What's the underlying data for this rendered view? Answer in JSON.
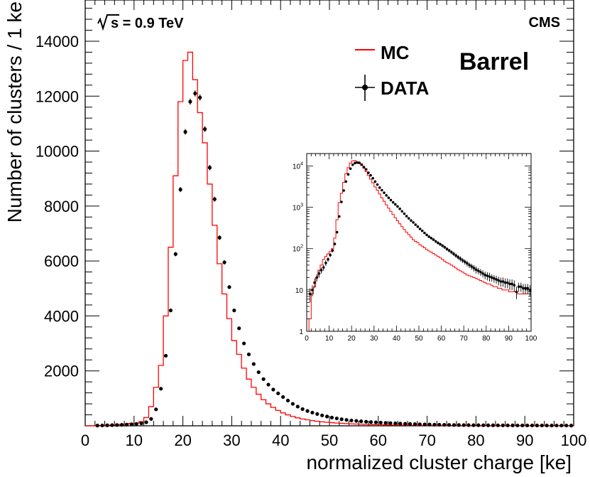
{
  "chart_data": [
    {
      "type": "histogram",
      "panel": "main",
      "experiment_label": "CMS",
      "energy_label": "s = 0.9 TeV",
      "region_label": "Barrel",
      "xlabel": "normalized cluster charge [ke]",
      "ylabel": "Number of clusters / 1 ke",
      "xlim": [
        0,
        100
      ],
      "ylim": [
        0,
        15500
      ],
      "x_ticks": [
        "0",
        "10",
        "20",
        "30",
        "40",
        "50",
        "60",
        "70",
        "80",
        "90",
        "100"
      ],
      "y_ticks": [
        "2000",
        "4000",
        "6000",
        "8000",
        "10000",
        "12000",
        "14000"
      ],
      "legend_position": "top-right",
      "series": [
        {
          "name": "MC",
          "style": "step",
          "color": "#ff0000",
          "bin_lower_edges": [
            0,
            1,
            2,
            3,
            4,
            5,
            6,
            7,
            8,
            9,
            10,
            11,
            12,
            13,
            14,
            15,
            16,
            17,
            18,
            19,
            20,
            21,
            22,
            23,
            24,
            25,
            26,
            27,
            28,
            29,
            30,
            31,
            32,
            33,
            34,
            35,
            36,
            37,
            38,
            39,
            40,
            41,
            42,
            43,
            44,
            45,
            46,
            47,
            48,
            49,
            50,
            51,
            52,
            53,
            54,
            55,
            56,
            57,
            58,
            59,
            60,
            61,
            62,
            63,
            64,
            65,
            66,
            67,
            68,
            69,
            70,
            71,
            72,
            73,
            74,
            75,
            76,
            77,
            78,
            79,
            80,
            81,
            82,
            83,
            84,
            85,
            86,
            87,
            88,
            89,
            90,
            91,
            92,
            93,
            94,
            95,
            96,
            97,
            98,
            99
          ],
          "values": [
            0,
            4,
            8,
            12,
            20,
            30,
            40,
            55,
            70,
            90,
            100,
            150,
            300,
            700,
            1400,
            2200,
            4000,
            6500,
            9100,
            11800,
            13300,
            13600,
            12600,
            11400,
            10300,
            8800,
            7300,
            5900,
            4800,
            3900,
            3100,
            2600,
            2100,
            1700,
            1400,
            1150,
            950,
            800,
            670,
            560,
            470,
            400,
            340,
            290,
            250,
            220,
            190,
            165,
            145,
            130,
            115,
            100,
            90,
            80,
            72,
            65,
            58,
            52,
            47,
            42,
            38,
            34,
            30,
            27,
            25,
            22,
            20,
            18,
            17,
            15,
            14,
            13,
            12,
            11,
            10,
            9,
            9,
            8,
            8,
            7,
            7,
            6,
            6,
            5,
            5,
            5,
            4,
            4,
            4,
            4,
            3,
            3,
            3,
            3,
            3,
            2,
            2,
            2,
            2,
            2
          ]
        },
        {
          "name": "DATA",
          "style": "points-with-errors",
          "color": "#000000",
          "x": [
            2.5,
            3.5,
            4.5,
            5.5,
            6.5,
            7.5,
            8.5,
            9.5,
            10.5,
            11.5,
            12.5,
            13.5,
            14.5,
            15.5,
            16.5,
            17.5,
            18.5,
            19.5,
            20.5,
            21.5,
            22.5,
            23.5,
            24.5,
            25.5,
            26.5,
            27.5,
            28.5,
            29.5,
            30.5,
            31.5,
            32.5,
            33.5,
            34.5,
            35.5,
            36.5,
            37.5,
            38.5,
            39.5,
            40.5,
            41.5,
            42.5,
            43.5,
            44.5,
            45.5,
            46.5,
            47.5,
            48.5,
            49.5,
            50.5,
            51.5,
            52.5,
            53.5,
            54.5,
            55.5,
            56.5,
            57.5,
            58.5,
            59.5,
            60.5,
            61.5,
            62.5,
            63.5,
            64.5,
            65.5,
            66.5,
            67.5,
            68.5,
            69.5,
            70.5,
            71.5,
            72.5,
            73.5,
            74.5,
            75.5,
            76.5,
            77.5,
            78.5,
            79.5,
            80.5,
            81.5,
            82.5,
            83.5,
            84.5,
            85.5,
            86.5,
            87.5,
            88.5,
            89.5,
            90.5,
            91.5,
            92.5,
            93.5,
            94.5,
            95.5,
            96.5,
            97.5,
            98.5,
            99.5
          ],
          "values": [
            10,
            15,
            20,
            25,
            30,
            35,
            45,
            55,
            70,
            90,
            130,
            250,
            600,
            1350,
            2550,
            4200,
            6250,
            8600,
            10700,
            11800,
            12100,
            11950,
            10800,
            9400,
            8250,
            6850,
            5950,
            5050,
            4200,
            3550,
            3000,
            2600,
            2250,
            1950,
            1700,
            1500,
            1320,
            1180,
            1050,
            920,
            800,
            700,
            610,
            540,
            480,
            430,
            380,
            340,
            300,
            270,
            240,
            215,
            195,
            180,
            165,
            150,
            138,
            128,
            118,
            108,
            98,
            90,
            82,
            75,
            68,
            62,
            57,
            52,
            48,
            44,
            40,
            37,
            34,
            31,
            29,
            27,
            25,
            23,
            22,
            21,
            20,
            19,
            18,
            17,
            16,
            16,
            15,
            15,
            14,
            14,
            13,
            13,
            12,
            12,
            11,
            11,
            11,
            10
          ],
          "errors": [
            3,
            4,
            4,
            5,
            5,
            6,
            7,
            7,
            8,
            9,
            11,
            16,
            25,
            37,
            50,
            65,
            79,
            93,
            103,
            109,
            110,
            109,
            104,
            97,
            91,
            83,
            77,
            71,
            65,
            60,
            55,
            51,
            47,
            44,
            41,
            39,
            36,
            34,
            32,
            30,
            28,
            26,
            25,
            23,
            22,
            21,
            19,
            18,
            17,
            16,
            15,
            15,
            14,
            13,
            13,
            12,
            12,
            11,
            11,
            10,
            10,
            9,
            9,
            9,
            8,
            8,
            8,
            7,
            7,
            7,
            6,
            6,
            6,
            6,
            5,
            5,
            5,
            5,
            5,
            5,
            4,
            4,
            4,
            4,
            4,
            4,
            4,
            4,
            4,
            4,
            4,
            4,
            3,
            3,
            3,
            3,
            3,
            3
          ]
        }
      ]
    },
    {
      "type": "histogram",
      "panel": "inset",
      "yscale": "log",
      "xlim": [
        0,
        100
      ],
      "ylim": [
        1,
        20000
      ],
      "x_ticks": [
        "0",
        "10",
        "20",
        "30",
        "40",
        "50",
        "60",
        "70",
        "80",
        "90",
        "100"
      ],
      "y_ticks": [
        {
          "base": "1",
          "exp": ""
        },
        {
          "base": "10",
          "exp": ""
        },
        {
          "base": "10",
          "exp": "2"
        },
        {
          "base": "10",
          "exp": "3"
        },
        {
          "base": "10",
          "exp": "4"
        }
      ],
      "series": [
        {
          "name": "MC",
          "style": "step",
          "color": "#ff0000",
          "bin_lower_edges": [
            0,
            1,
            2,
            3,
            4,
            5,
            6,
            7,
            8,
            9,
            10,
            11,
            12,
            13,
            14,
            15,
            16,
            17,
            18,
            19,
            20,
            21,
            22,
            23,
            24,
            25,
            26,
            27,
            28,
            29,
            30,
            31,
            32,
            33,
            34,
            35,
            36,
            37,
            38,
            39,
            40,
            41,
            42,
            43,
            44,
            45,
            46,
            47,
            48,
            49,
            50,
            51,
            52,
            53,
            54,
            55,
            56,
            57,
            58,
            59,
            60,
            61,
            62,
            63,
            64,
            65,
            66,
            67,
            68,
            69,
            70,
            71,
            72,
            73,
            74,
            75,
            76,
            77,
            78,
            79,
            80,
            81,
            82,
            83,
            84,
            85,
            86,
            87,
            88,
            89,
            90,
            91,
            92,
            93,
            94,
            95,
            96,
            97,
            98,
            99
          ],
          "values": [
            1,
            2,
            8,
            12,
            20,
            30,
            40,
            55,
            65,
            75,
            85,
            100,
            180,
            500,
            1300,
            2200,
            4000,
            6500,
            9100,
            11800,
            13300,
            13600,
            12600,
            11400,
            10300,
            8800,
            7300,
            5900,
            4800,
            3900,
            3100,
            2600,
            2100,
            1700,
            1400,
            1150,
            950,
            800,
            670,
            560,
            470,
            400,
            340,
            290,
            250,
            220,
            190,
            165,
            150,
            140,
            125,
            115,
            105,
            95,
            88,
            82,
            76,
            70,
            65,
            60,
            55,
            50,
            46,
            43,
            40,
            37,
            34,
            31,
            29,
            27,
            25,
            23,
            22,
            21,
            20,
            19,
            18,
            17,
            16,
            15,
            14,
            14,
            13,
            12,
            12,
            11,
            11,
            10,
            10,
            10,
            9,
            9,
            9,
            9,
            8,
            8,
            8,
            8,
            8
          ]
        },
        {
          "name": "DATA",
          "style": "points-with-errors",
          "color": "#000000",
          "x": [
            1.5,
            2.5,
            3.5,
            4.5,
            5.5,
            6.5,
            7.5,
            8.5,
            9.5,
            10.5,
            11.5,
            12.5,
            13.5,
            14.5,
            15.5,
            16.5,
            17.5,
            18.5,
            19.5,
            20.5,
            21.5,
            22.5,
            23.5,
            24.5,
            25.5,
            26.5,
            27.5,
            28.5,
            29.5,
            30.5,
            31.5,
            32.5,
            33.5,
            34.5,
            35.5,
            36.5,
            37.5,
            38.5,
            39.5,
            40.5,
            41.5,
            42.5,
            43.5,
            44.5,
            45.5,
            46.5,
            47.5,
            48.5,
            49.5,
            50.5,
            51.5,
            52.5,
            53.5,
            54.5,
            55.5,
            56.5,
            57.5,
            58.5,
            59.5,
            60.5,
            61.5,
            62.5,
            63.5,
            64.5,
            65.5,
            66.5,
            67.5,
            68.5,
            69.5,
            70.5,
            71.5,
            72.5,
            73.5,
            74.5,
            75.5,
            76.5,
            77.5,
            78.5,
            79.5,
            80.5,
            81.5,
            82.5,
            83.5,
            84.5,
            85.5,
            86.5,
            87.5,
            88.5,
            89.5,
            90.5,
            91.5,
            92.5,
            93.5,
            94.5,
            95.5,
            96.5,
            97.5,
            98.5,
            99.5
          ],
          "values": [
            8,
            10,
            15,
            20,
            25,
            30,
            35,
            45,
            55,
            70,
            90,
            130,
            250,
            600,
            1350,
            2550,
            4200,
            6250,
            8600,
            10700,
            11800,
            12100,
            11950,
            10800,
            9400,
            8250,
            6850,
            5950,
            5050,
            4200,
            3550,
            3000,
            2600,
            2250,
            1950,
            1700,
            1500,
            1320,
            1180,
            1050,
            920,
            800,
            700,
            610,
            540,
            480,
            430,
            380,
            340,
            300,
            270,
            240,
            215,
            195,
            180,
            165,
            150,
            138,
            128,
            118,
            108,
            98,
            90,
            82,
            75,
            68,
            62,
            57,
            52,
            48,
            44,
            40,
            37,
            34,
            31,
            29,
            27,
            25,
            23,
            22,
            21,
            20,
            19,
            18,
            17,
            16,
            16,
            15,
            15,
            14,
            14,
            13,
            9,
            12,
            12,
            11,
            11,
            11,
            10
          ],
          "errors": [
            3,
            3,
            4,
            4,
            5,
            5,
            6,
            7,
            7,
            8,
            9,
            11,
            16,
            25,
            37,
            50,
            65,
            79,
            93,
            103,
            109,
            110,
            109,
            104,
            97,
            91,
            83,
            77,
            71,
            65,
            60,
            55,
            51,
            47,
            44,
            41,
            39,
            36,
            34,
            32,
            30,
            28,
            26,
            25,
            23,
            22,
            21,
            19,
            18,
            17,
            16,
            15,
            15,
            14,
            13,
            13,
            12,
            12,
            11,
            11,
            10,
            10,
            9,
            9,
            9,
            8,
            8,
            8,
            7,
            7,
            7,
            6,
            6,
            6,
            6,
            5,
            5,
            5,
            5,
            5,
            5,
            4,
            4,
            4,
            4,
            4,
            4,
            4,
            4,
            4,
            4,
            4,
            3,
            3,
            3,
            3,
            3,
            3,
            3
          ]
        }
      ]
    }
  ]
}
